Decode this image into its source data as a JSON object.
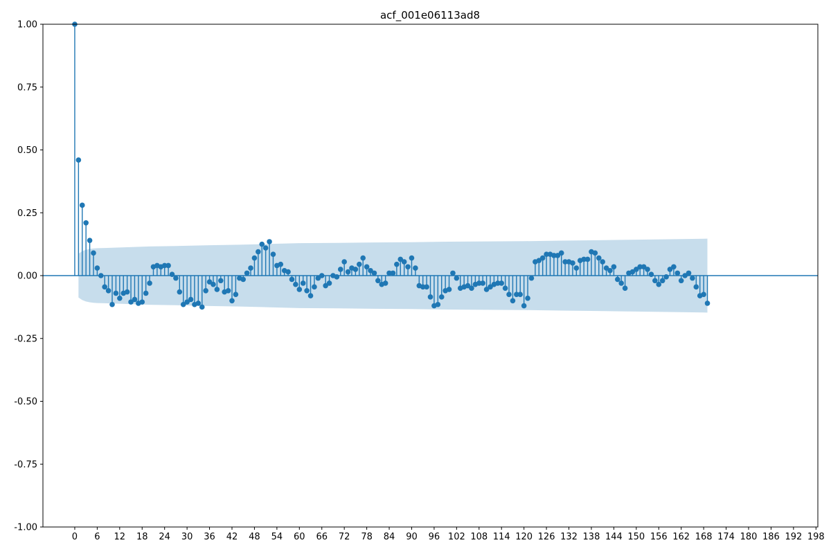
{
  "chart_data": {
    "type": "stem",
    "title": "acf_001e06113ad8",
    "xlabel": "",
    "ylabel": "",
    "xlim": [
      -8.5,
      198.5
    ],
    "ylim": [
      -1.0,
      1.0
    ],
    "x_ticks": [
      0,
      6,
      12,
      18,
      24,
      30,
      36,
      42,
      48,
      54,
      60,
      66,
      72,
      78,
      84,
      90,
      96,
      102,
      108,
      114,
      120,
      126,
      132,
      138,
      144,
      150,
      156,
      162,
      168,
      174,
      180,
      186,
      192,
      198
    ],
    "y_ticks": [
      -1.0,
      -0.75,
      -0.5,
      -0.25,
      0.0,
      0.25,
      0.5,
      0.75,
      1.0
    ],
    "y_tick_labels": [
      "-1.00",
      "-0.75",
      "-0.50",
      "-0.25",
      "0.00",
      "0.25",
      "0.50",
      "0.75",
      "1.00"
    ],
    "colors": {
      "stem": "#1f77b4",
      "band": "#1f77b4",
      "baseline": "#1f77b4"
    },
    "grid": false,
    "acf": [
      1.0,
      0.46,
      0.28,
      0.21,
      0.14,
      0.09,
      0.03,
      0.0,
      -0.045,
      -0.06,
      -0.115,
      -0.07,
      -0.09,
      -0.07,
      -0.065,
      -0.105,
      -0.095,
      -0.11,
      -0.105,
      -0.07,
      -0.03,
      0.035,
      0.04,
      0.035,
      0.04,
      0.04,
      0.005,
      -0.01,
      -0.065,
      -0.115,
      -0.105,
      -0.095,
      -0.115,
      -0.11,
      -0.125,
      -0.06,
      -0.025,
      -0.035,
      -0.055,
      -0.02,
      -0.065,
      -0.06,
      -0.1,
      -0.075,
      -0.01,
      -0.015,
      0.01,
      0.03,
      0.07,
      0.095,
      0.125,
      0.11,
      0.135,
      0.085,
      0.04,
      0.045,
      0.02,
      0.015,
      -0.015,
      -0.035,
      -0.055,
      -0.03,
      -0.06,
      -0.08,
      -0.045,
      -0.01,
      0.0,
      -0.04,
      -0.03,
      0.0,
      -0.005,
      0.025,
      0.055,
      0.015,
      0.03,
      0.025,
      0.045,
      0.07,
      0.035,
      0.02,
      0.01,
      -0.02,
      -0.035,
      -0.03,
      0.01,
      0.01,
      0.045,
      0.065,
      0.055,
      0.035,
      0.07,
      0.03,
      -0.04,
      -0.045,
      -0.045,
      -0.085,
      -0.12,
      -0.115,
      -0.085,
      -0.06,
      -0.055,
      0.01,
      -0.01,
      -0.05,
      -0.045,
      -0.04,
      -0.05,
      -0.035,
      -0.03,
      -0.03,
      -0.055,
      -0.045,
      -0.035,
      -0.03,
      -0.03,
      -0.05,
      -0.075,
      -0.1,
      -0.075,
      -0.075,
      -0.12,
      -0.09,
      -0.01,
      0.055,
      0.06,
      0.07,
      0.085,
      0.085,
      0.08,
      0.08,
      0.09,
      0.055,
      0.055,
      0.05,
      0.03,
      0.06,
      0.065,
      0.065,
      0.095,
      0.09,
      0.07,
      0.055,
      0.03,
      0.02,
      0.035,
      -0.015,
      -0.03,
      -0.05,
      0.01,
      0.015,
      0.025,
      0.035,
      0.035,
      0.025,
      0.005,
      -0.02,
      -0.035,
      -0.02,
      -0.005,
      0.025,
      0.035,
      0.01,
      -0.02,
      0.0,
      0.01,
      -0.01,
      -0.045,
      -0.08,
      -0.075,
      -0.11
    ],
    "confint_band": {
      "lags": [
        1,
        2,
        3,
        4,
        5,
        6,
        8,
        10,
        14,
        20,
        28,
        36,
        44,
        52,
        60,
        70,
        80,
        90,
        100,
        110,
        120,
        130,
        140,
        150,
        160,
        169
      ],
      "halfwidth": [
        0.087,
        0.097,
        0.103,
        0.106,
        0.108,
        0.109,
        0.11,
        0.111,
        0.113,
        0.116,
        0.118,
        0.121,
        0.123,
        0.126,
        0.129,
        0.13,
        0.132,
        0.133,
        0.135,
        0.136,
        0.137,
        0.139,
        0.141,
        0.143,
        0.145,
        0.147
      ]
    }
  }
}
